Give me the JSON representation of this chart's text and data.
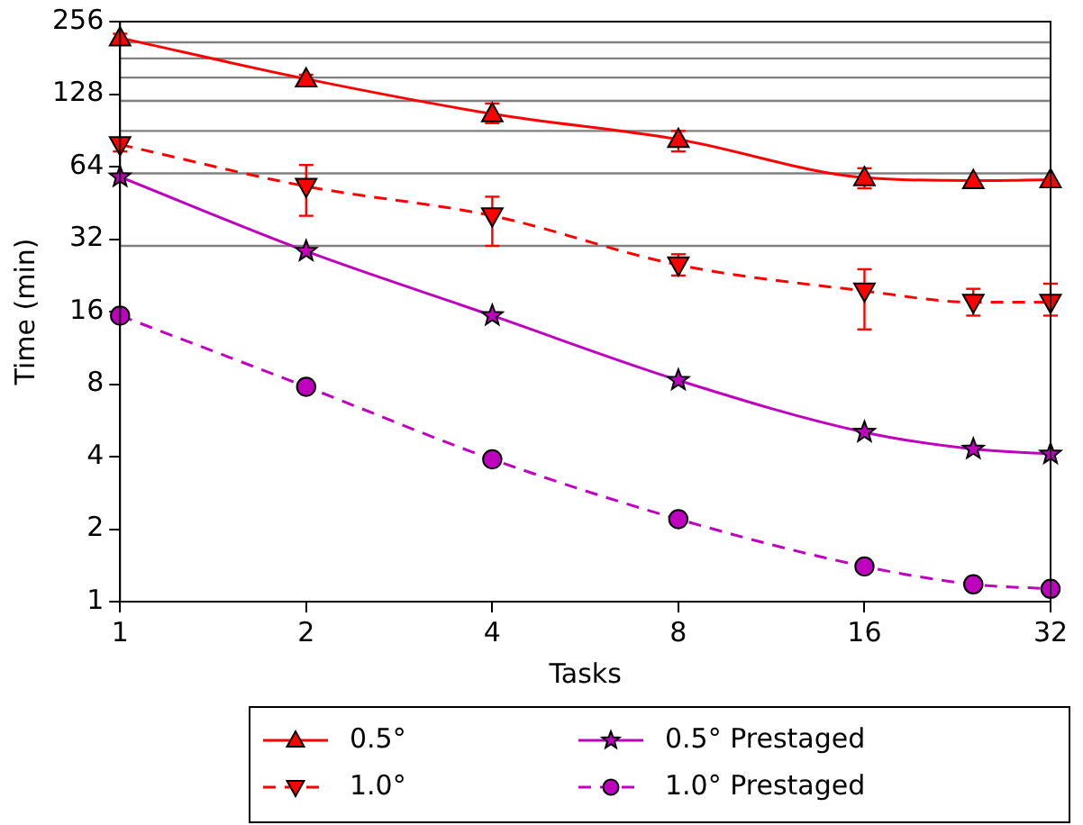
{
  "chart_data": {
    "type": "line",
    "xlabel": "Tasks",
    "ylabel": "Time (min)",
    "log": "xy",
    "grid": false,
    "legend": "bottom",
    "x": [
      1,
      2,
      4,
      8,
      16,
      24,
      32
    ],
    "xlim": [
      1,
      32
    ],
    "xticks": [
      1,
      2,
      4,
      8,
      16,
      32
    ],
    "ylim": [
      1,
      256
    ],
    "yticks": [
      1,
      2,
      4,
      8,
      16,
      32,
      64,
      128,
      256
    ],
    "ref_lines": [
      {
        "axis": "y",
        "value": 30,
        "color": "#808080"
      },
      {
        "axis": "y",
        "value": 60,
        "color": "#808080"
      },
      {
        "axis": "y",
        "value": 90,
        "color": "#808080"
      },
      {
        "axis": "y",
        "value": 120,
        "color": "#808080"
      },
      {
        "axis": "y",
        "value": 150,
        "color": "#808080"
      },
      {
        "axis": "y",
        "value": 180,
        "color": "#808080"
      },
      {
        "axis": "y",
        "value": 210,
        "color": "#808080"
      }
    ],
    "series": [
      {
        "name": "0.5°",
        "color": "#ff0000",
        "marker": "triangle",
        "line_style": "solid",
        "values": [
          219,
          148,
          106,
          83,
          57.6,
          56,
          56.5
        ],
        "errors": [
          [
            212,
            228
          ],
          [
            142,
            154
          ],
          [
            97,
            117
          ],
          [
            74,
            90
          ],
          [
            52,
            63
          ],
          null,
          null
        ]
      },
      {
        "name": "1.0°",
        "color": "#ff0000",
        "marker": "triangle-down",
        "line_style": "dashed",
        "values": [
          79,
          53,
          40,
          25,
          19.5,
          17.5,
          17.5
        ],
        "errors": [
          [
            74,
            84
          ],
          [
            40,
            65
          ],
          [
            30,
            48
          ],
          [
            22.6,
            27.7
          ],
          [
            13.5,
            24
          ],
          [
            15.4,
            19.9
          ],
          [
            15.4,
            20.9
          ]
        ]
      },
      {
        "name": "0.5° Prestaged",
        "color": "#bf00bf",
        "marker": "star",
        "line_style": "solid",
        "values": [
          58,
          28.5,
          15.4,
          8.3,
          5.05,
          4.3,
          4.1
        ]
      },
      {
        "name": "1.0° Prestaged",
        "color": "#bf00bf",
        "marker": "circle",
        "line_style": "dashed",
        "values": [
          15.4,
          7.8,
          3.9,
          2.2,
          1.4,
          1.18,
          1.13
        ]
      }
    ]
  }
}
